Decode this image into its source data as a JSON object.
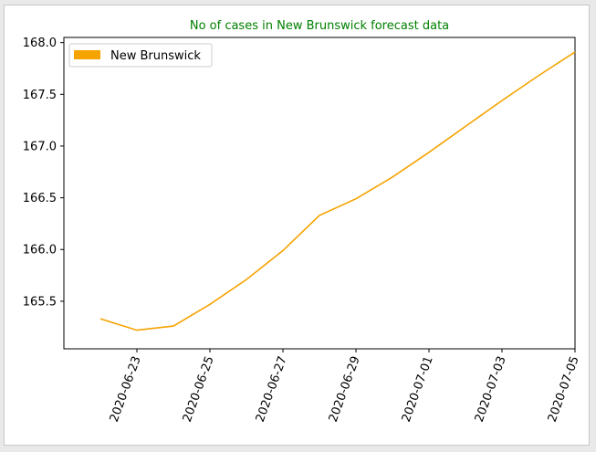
{
  "chart_data": {
    "type": "line",
    "title": "No of cases in New Brunswick forecast data",
    "title_color": "#008000",
    "xlabel": "",
    "ylabel": "",
    "line_color": "#f5a300",
    "legend_position": "upper-left",
    "grid": false,
    "x_ticks": [
      "2020-06-23",
      "2020-06-25",
      "2020-06-27",
      "2020-06-29",
      "2020-07-01",
      "2020-07-03",
      "2020-07-05"
    ],
    "y_ticks": [
      "165.5",
      "166.0",
      "166.5",
      "167.0",
      "167.5",
      "168.0"
    ],
    "ylim": [
      165.04,
      168.05
    ],
    "xlim": [
      "2020-06-21",
      "2020-07-05"
    ],
    "series": [
      {
        "name": "New Brunswick",
        "x": [
          "2020-06-22",
          "2020-06-23",
          "2020-06-24",
          "2020-06-25",
          "2020-06-26",
          "2020-06-27",
          "2020-06-28",
          "2020-06-29",
          "2020-06-30",
          "2020-07-01",
          "2020-07-02",
          "2020-07-03",
          "2020-07-04",
          "2020-07-05"
        ],
        "values": [
          165.33,
          165.22,
          165.26,
          165.47,
          165.71,
          165.99,
          166.33,
          166.49,
          166.7,
          166.94,
          167.19,
          167.44,
          167.68,
          167.91
        ]
      }
    ]
  }
}
